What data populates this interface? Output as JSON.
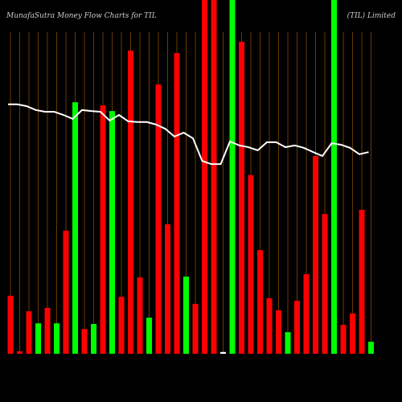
{
  "chart_data": {
    "type": "bar",
    "title": "MunafaSutra  Money Flow  Charts for TIL",
    "subtitle": "(TIL) Limited",
    "ylim": [
      0,
      100
    ],
    "grid_color": "#6b3a00",
    "series": [
      {
        "name": "Money Flow",
        "type": "bar",
        "values": [
          16.4,
          0.7,
          12,
          8.6,
          13,
          8.6,
          34.8,
          71.1,
          7,
          8.4,
          70.2,
          68.6,
          16.1,
          85.7,
          21.6,
          10.2,
          76.1,
          36.6,
          85,
          21.8,
          14.1,
          100,
          100,
          0.5,
          100,
          88.2,
          50.5,
          29.3,
          15.7,
          12.3,
          6.1,
          15,
          22.5,
          55.9,
          39.5,
          100,
          8.2,
          11.4,
          40.7,
          3.4
        ],
        "colors": [
          "#ff0000",
          "#ff0000",
          "#ff0000",
          "#00ff00",
          "#ff0000",
          "#00ff00",
          "#ff0000",
          "#00ff00",
          "#ff0000",
          "#00ff00",
          "#ff0000",
          "#00ff00",
          "#ff0000",
          "#ff0000",
          "#ff0000",
          "#00ff00",
          "#ff0000",
          "#ff0000",
          "#ff0000",
          "#00ff00",
          "#ff0000",
          "#ff0000",
          "#ff0000",
          "#ffffff",
          "#00ff00",
          "#ff0000",
          "#ff0000",
          "#ff0000",
          "#ff0000",
          "#ff0000",
          "#00ff00",
          "#ff0000",
          "#ff0000",
          "#ff0000",
          "#ff0000",
          "#00ff00",
          "#ff0000",
          "#ff0000",
          "#ff0000",
          "#00ff00"
        ]
      },
      {
        "name": "Price",
        "type": "line",
        "color": "#ffffff",
        "values": [
          70.5,
          70.5,
          70,
          68.9,
          68.4,
          68.4,
          67.5,
          66.4,
          68.9,
          68.6,
          68.4,
          65.9,
          67.5,
          65.7,
          65.5,
          65.5,
          64.8,
          63.6,
          61.4,
          62.5,
          60.9,
          54.5,
          53.6,
          53.6,
          60,
          58.9,
          58.4,
          57.5,
          59.8,
          59.8,
          58.4,
          58.9,
          58.2,
          57,
          55.9,
          59.5,
          59.1,
          58.2,
          56.4,
          57
        ]
      }
    ]
  }
}
